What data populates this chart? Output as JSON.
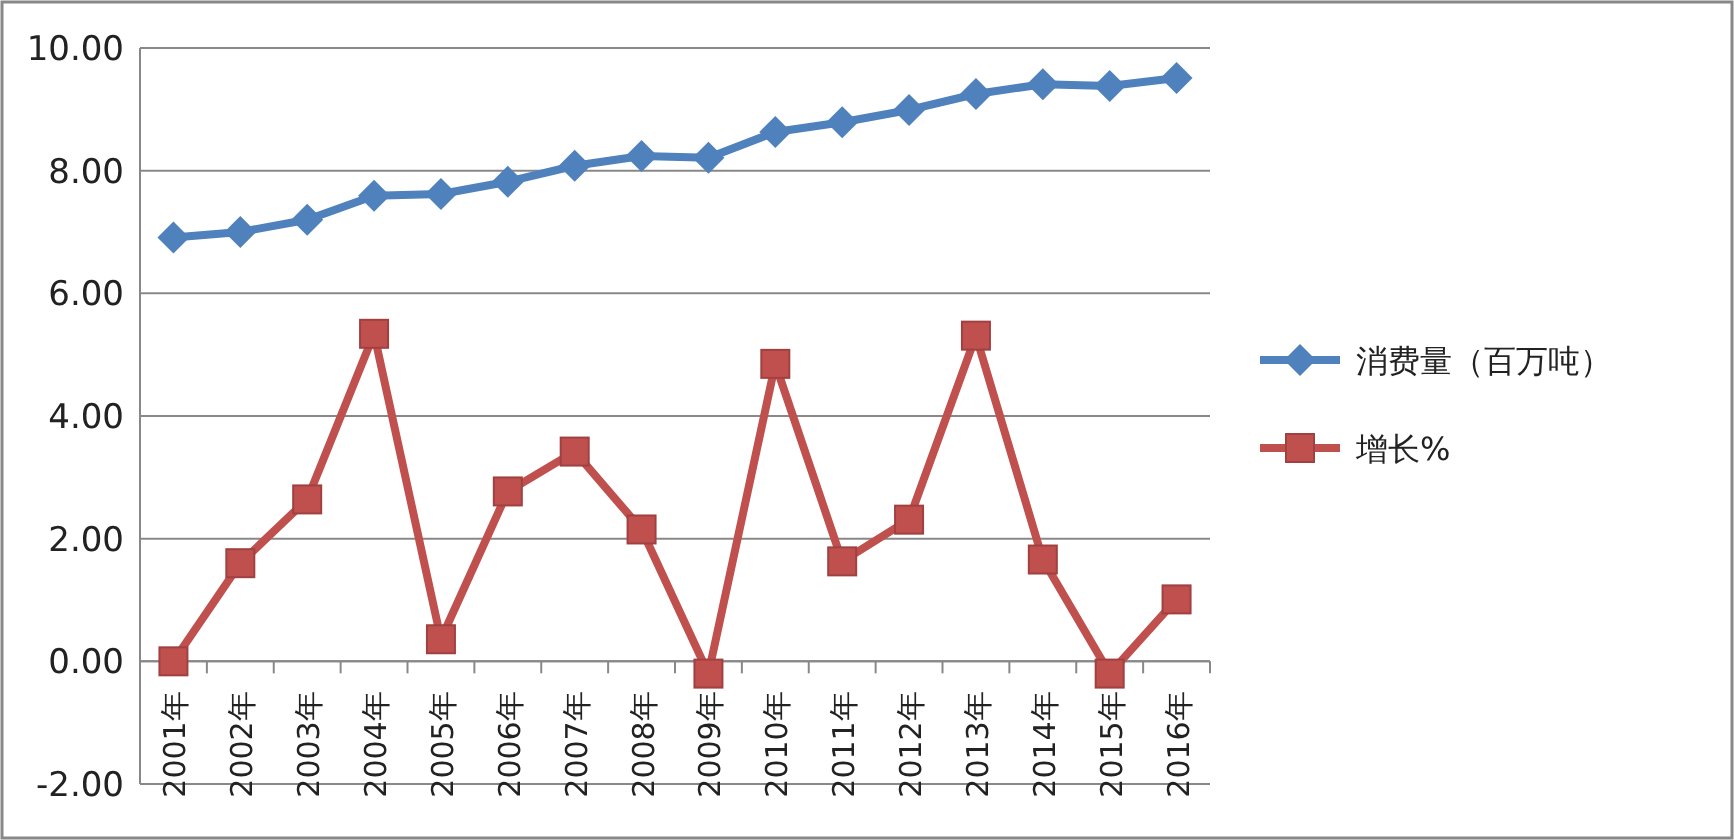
{
  "chart_data": {
    "type": "line",
    "categories": [
      "2001年",
      "2002年",
      "2003年",
      "2004年",
      "2005年",
      "2006年",
      "2007年",
      "2008年",
      "2009年",
      "2010年",
      "2011年",
      "2012年",
      "2013年",
      "2014年",
      "2015年",
      "2016年"
    ],
    "series": [
      {
        "name": "消费量（百万吨）",
        "color": "#4f81bd",
        "marker": "diamond",
        "values": [
          6.91,
          7.0,
          7.2,
          7.59,
          7.62,
          7.82,
          8.08,
          8.24,
          8.21,
          8.63,
          8.79,
          8.99,
          9.25,
          9.41,
          9.38,
          9.51
        ]
      },
      {
        "name": "增长%",
        "color": "#c0504d",
        "marker": "square",
        "values": [
          0,
          1.6,
          2.64,
          5.34,
          0.36,
          2.77,
          3.42,
          2.15,
          -0.2,
          4.85,
          1.63,
          2.31,
          5.31,
          1.66,
          -0.2,
          1.01
        ]
      }
    ],
    "ylim": [
      -2,
      10
    ],
    "yticks": [
      {
        "value": -2,
        "label": "-2.00"
      },
      {
        "value": 0,
        "label": "0.00"
      },
      {
        "value": 2,
        "label": "2.00"
      },
      {
        "value": 4,
        "label": "4.00"
      },
      {
        "value": 6,
        "label": "6.00"
      },
      {
        "value": 8,
        "label": "8.00"
      },
      {
        "value": 10,
        "label": "10.00"
      }
    ],
    "grid": "y",
    "legend": "right",
    "line_style": "solid"
  }
}
